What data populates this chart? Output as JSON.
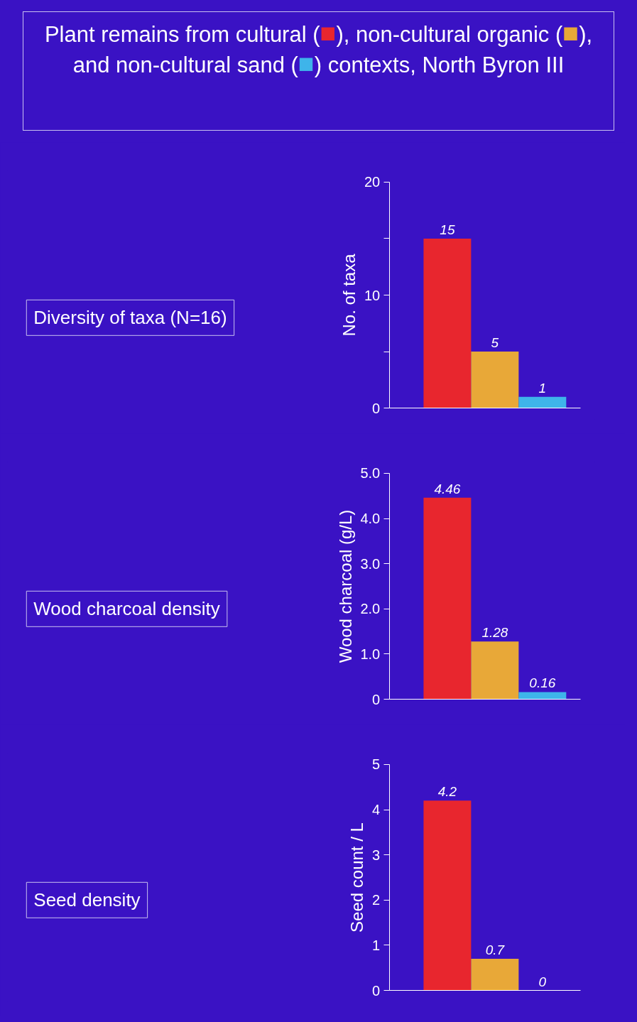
{
  "chart_data": [
    {
      "type": "bar",
      "title": "Plant remains from cultural (■), non-cultural organic (■), and non-cultural sand (■) contexts, North Byron III",
      "annotations": [
        "Diversity of taxa (N=16)"
      ],
      "ylabel": "No. of taxa",
      "categories": [
        null,
        null,
        null
      ],
      "values": [
        15,
        5,
        1
      ],
      "colors": [
        "#e8262e",
        "#e8a838",
        "#3eb4ea"
      ],
      "ylim": [
        0,
        20
      ],
      "yticks": [
        0,
        {
          "value": 5,
          "label": null
        },
        10,
        {
          "value": 15,
          "label": null
        },
        20
      ],
      "data_labels": true,
      "tick_labels": "y",
      "grid": false
    },
    {
      "type": "bar",
      "annotations": [
        "Wood charcoal density"
      ],
      "ylabel": "Wood charcoal (g/L)",
      "categories": [
        null,
        null,
        null
      ],
      "values": [
        4.46,
        1.28,
        0.16
      ],
      "colors": [
        "#e8262e",
        "#e8a838",
        "#3eb4ea"
      ],
      "ylim": [
        0,
        5
      ],
      "yticks": [
        0,
        {
          "value": 1,
          "label": "1.0"
        },
        {
          "value": 2,
          "label": "2.0"
        },
        {
          "value": 3,
          "label": "3.0"
        },
        {
          "value": 4,
          "label": "4.0"
        },
        {
          "value": 5,
          "label": "5.0"
        }
      ],
      "data_labels": true,
      "tick_labels": "y",
      "grid": false
    },
    {
      "type": "bar",
      "annotations": [
        "Seed density"
      ],
      "ylabel": "Seed count / L",
      "categories": [
        null,
        null,
        null
      ],
      "values": [
        4.2,
        0.7,
        0
      ],
      "colors": [
        "#e8262e",
        "#e8a838",
        "#3eb4ea"
      ],
      "ylim": [
        0,
        5
      ],
      "yticks": [
        0,
        1,
        2,
        3,
        4,
        5
      ],
      "data_labels": true,
      "tick_labels": "y",
      "grid": false
    }
  ]
}
